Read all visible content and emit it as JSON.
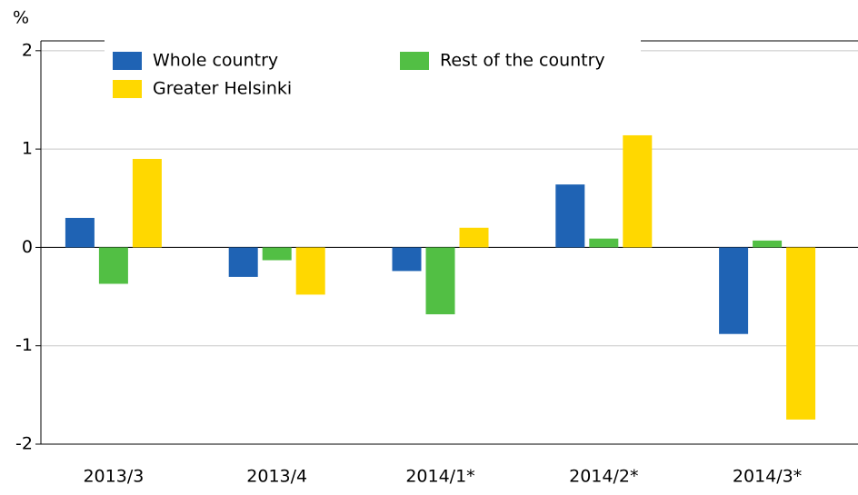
{
  "chart_data": {
    "type": "bar",
    "y_label": "%",
    "categories": [
      "2013/3",
      "2013/4",
      "2014/1*",
      "2014/2*",
      "2014/3*"
    ],
    "series": [
      {
        "name": "Whole country",
        "color": "#1f63b4",
        "values": [
          0.3,
          -0.3,
          -0.24,
          0.64,
          -0.88
        ]
      },
      {
        "name": "Rest of the country",
        "color": "#52bf44",
        "values": [
          -0.37,
          -0.13,
          -0.68,
          0.09,
          0.07
        ]
      },
      {
        "name": "Greater Helsinki",
        "color": "#ffd800",
        "values": [
          0.9,
          -0.48,
          0.2,
          1.14,
          -1.75
        ]
      }
    ],
    "ylim": [
      -2,
      2.1
    ],
    "yticks": [
      -2,
      -1,
      0,
      1,
      2
    ],
    "grid": true,
    "legend": "top-left"
  }
}
